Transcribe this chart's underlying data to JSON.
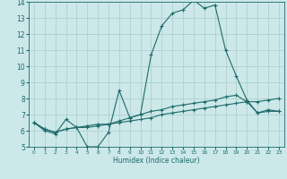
{
  "xlabel": "Humidex (Indice chaleur)",
  "xlim": [
    -0.5,
    23.5
  ],
  "ylim": [
    5,
    14
  ],
  "yticks": [
    5,
    6,
    7,
    8,
    9,
    10,
    11,
    12,
    13,
    14
  ],
  "xticks": [
    0,
    1,
    2,
    3,
    4,
    5,
    6,
    7,
    8,
    9,
    10,
    11,
    12,
    13,
    14,
    15,
    16,
    17,
    18,
    19,
    20,
    21,
    22,
    23
  ],
  "bg_color": "#cce8e8",
  "line_color": "#1e6b6b",
  "grid_color": "#aacccc",
  "series": [
    [
      6.5,
      6.0,
      5.8,
      6.7,
      6.2,
      5.0,
      5.0,
      5.9,
      8.5,
      6.8,
      7.0,
      10.7,
      12.5,
      13.3,
      13.5,
      14.1,
      13.6,
      13.8,
      11.0,
      9.4,
      7.9,
      7.1,
      7.3,
      7.2
    ],
    [
      6.5,
      6.1,
      5.9,
      6.1,
      6.2,
      6.2,
      6.3,
      6.4,
      6.5,
      6.6,
      6.7,
      6.8,
      7.0,
      7.1,
      7.2,
      7.3,
      7.4,
      7.5,
      7.6,
      7.7,
      7.8,
      7.8,
      7.9,
      8.0
    ],
    [
      6.5,
      6.1,
      5.9,
      6.1,
      6.2,
      6.3,
      6.4,
      6.4,
      6.6,
      6.8,
      7.0,
      7.2,
      7.3,
      7.5,
      7.6,
      7.7,
      7.8,
      7.9,
      8.1,
      8.2,
      7.8,
      7.1,
      7.2,
      7.2
    ]
  ]
}
